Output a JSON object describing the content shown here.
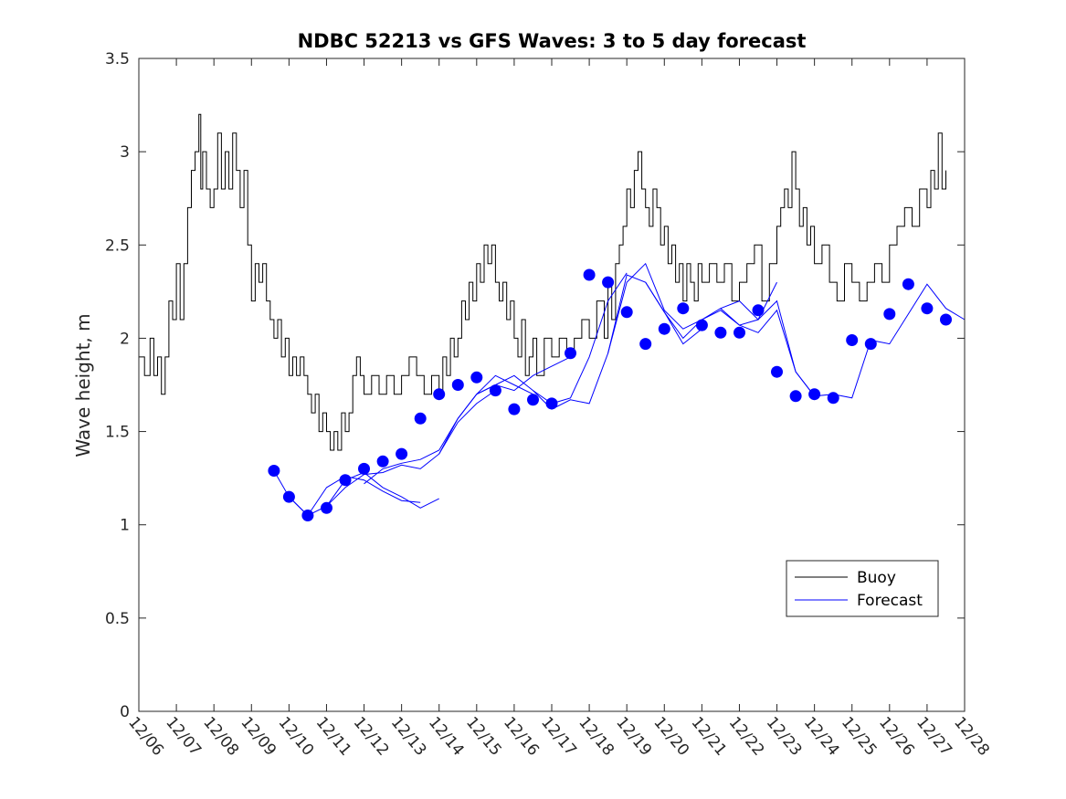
{
  "chart_data": {
    "type": "line",
    "title": "NDBC 52213 vs GFS Waves: 3 to 5 day forecast",
    "xlabel": "",
    "ylabel": "Wave height, m",
    "xlim": [
      0,
      22
    ],
    "ylim": [
      0,
      3.5
    ],
    "yticks": [
      0,
      0.5,
      1,
      1.5,
      2,
      2.5,
      3,
      3.5
    ],
    "ytick_labels": [
      "0",
      "0.5",
      "1",
      "1.5",
      "2",
      "2.5",
      "3",
      "3.5"
    ],
    "xtick_labels": [
      "12/06",
      "12/07",
      "12/08",
      "12/09",
      "12/10",
      "12/11",
      "12/12",
      "12/13",
      "12/14",
      "12/15",
      "12/16",
      "12/17",
      "12/18",
      "12/19",
      "12/20",
      "12/21",
      "12/22",
      "12/23",
      "12/24",
      "12/25",
      "12/26",
      "12/27",
      "12/28"
    ],
    "legend": {
      "position": "lower-right",
      "entries": [
        "Buoy",
        "Forecast"
      ]
    },
    "series": [
      {
        "name": "Buoy",
        "color": "#000000",
        "x": [
          0.0,
          0.15,
          0.3,
          0.4,
          0.5,
          0.6,
          0.7,
          0.8,
          0.9,
          1.0,
          1.1,
          1.2,
          1.3,
          1.4,
          1.5,
          1.6,
          1.65,
          1.7,
          1.8,
          1.9,
          2.0,
          2.1,
          2.2,
          2.3,
          2.4,
          2.5,
          2.6,
          2.7,
          2.8,
          2.9,
          3.0,
          3.1,
          3.2,
          3.3,
          3.4,
          3.5,
          3.6,
          3.7,
          3.8,
          3.9,
          4.0,
          4.1,
          4.2,
          4.3,
          4.4,
          4.5,
          4.6,
          4.7,
          4.8,
          4.9,
          5.0,
          5.1,
          5.2,
          5.3,
          5.4,
          5.5,
          5.6,
          5.7,
          5.8,
          5.9,
          6.0,
          6.2,
          6.4,
          6.6,
          6.8,
          7.0,
          7.2,
          7.4,
          7.6,
          7.8,
          8.0,
          8.1,
          8.2,
          8.3,
          8.4,
          8.5,
          8.6,
          8.7,
          8.8,
          8.9,
          9.0,
          9.1,
          9.2,
          9.3,
          9.4,
          9.5,
          9.6,
          9.7,
          9.8,
          9.9,
          10.0,
          10.1,
          10.2,
          10.3,
          10.4,
          10.5,
          10.6,
          10.8,
          11.0,
          11.2,
          11.4,
          11.6,
          11.8,
          12.0,
          12.2,
          12.4,
          12.5,
          12.6,
          12.7,
          12.8,
          12.9,
          13.0,
          13.1,
          13.2,
          13.3,
          13.4,
          13.5,
          13.6,
          13.7,
          13.8,
          13.9,
          14.0,
          14.1,
          14.2,
          14.3,
          14.4,
          14.5,
          14.6,
          14.7,
          14.8,
          14.9,
          15.0,
          15.2,
          15.4,
          15.6,
          15.8,
          16.0,
          16.2,
          16.4,
          16.6,
          16.8,
          17.0,
          17.1,
          17.2,
          17.3,
          17.4,
          17.5,
          17.6,
          17.7,
          17.8,
          17.9,
          18.0,
          18.2,
          18.4,
          18.6,
          18.8,
          19.0,
          19.2,
          19.4,
          19.6,
          19.8,
          20.0,
          20.2,
          20.4,
          20.6,
          20.8,
          21.0,
          21.1,
          21.2,
          21.3,
          21.4,
          21.5
        ],
        "values": [
          1.9,
          1.8,
          2.0,
          1.8,
          1.9,
          1.7,
          1.9,
          2.2,
          2.1,
          2.4,
          2.1,
          2.4,
          2.7,
          2.9,
          3.0,
          3.2,
          2.8,
          3.0,
          2.8,
          2.7,
          2.8,
          3.1,
          2.8,
          3.0,
          2.8,
          3.1,
          2.9,
          2.7,
          2.9,
          2.5,
          2.2,
          2.4,
          2.3,
          2.4,
          2.2,
          2.1,
          2.0,
          2.1,
          1.9,
          2.0,
          1.8,
          1.9,
          1.8,
          1.9,
          1.8,
          1.7,
          1.6,
          1.7,
          1.5,
          1.6,
          1.5,
          1.4,
          1.5,
          1.4,
          1.6,
          1.5,
          1.6,
          1.8,
          1.9,
          1.8,
          1.7,
          1.8,
          1.7,
          1.8,
          1.7,
          1.8,
          1.9,
          1.8,
          1.7,
          1.8,
          1.7,
          1.9,
          1.8,
          2.0,
          1.9,
          2.0,
          2.2,
          2.1,
          2.3,
          2.2,
          2.4,
          2.3,
          2.5,
          2.4,
          2.5,
          2.3,
          2.2,
          2.3,
          2.1,
          2.2,
          2.0,
          1.9,
          2.1,
          1.8,
          1.9,
          2.0,
          1.8,
          2.0,
          1.9,
          2.0,
          1.9,
          2.0,
          2.1,
          2.0,
          2.2,
          2.0,
          2.3,
          2.1,
          2.4,
          2.5,
          2.6,
          2.8,
          2.7,
          2.9,
          3.0,
          2.8,
          2.7,
          2.6,
          2.8,
          2.7,
          2.5,
          2.6,
          2.4,
          2.5,
          2.3,
          2.4,
          2.2,
          2.4,
          2.3,
          2.2,
          2.4,
          2.3,
          2.4,
          2.3,
          2.4,
          2.2,
          2.3,
          2.4,
          2.5,
          2.2,
          2.4,
          2.6,
          2.7,
          2.8,
          2.7,
          3.0,
          2.8,
          2.6,
          2.7,
          2.5,
          2.6,
          2.4,
          2.5,
          2.3,
          2.2,
          2.4,
          2.3,
          2.2,
          2.3,
          2.4,
          2.3,
          2.5,
          2.6,
          2.7,
          2.6,
          2.8,
          2.7,
          2.9,
          2.8,
          3.1,
          2.8,
          2.9
        ]
      },
      {
        "name": "Forecast",
        "color": "#0000ff",
        "runs": [
          {
            "x": [
              3.6,
              4.0,
              4.5,
              5.0,
              5.5,
              6.0,
              6.5,
              7.0,
              7.5
            ],
            "values": [
              1.29,
              1.15,
              1.05,
              1.2,
              1.26,
              1.24,
              1.18,
              1.13,
              1.12
            ]
          },
          {
            "x": [
              4.0,
              4.5,
              5.0,
              5.5,
              6.0,
              6.5,
              7.0,
              7.5,
              8.0
            ],
            "values": [
              1.15,
              1.05,
              1.1,
              1.24,
              1.28,
              1.2,
              1.15,
              1.09,
              1.14
            ]
          },
          {
            "x": [
              5.0,
              5.5,
              6.0,
              6.5,
              7.0,
              7.5,
              8.0,
              8.5,
              9.0,
              9.5
            ],
            "values": [
              1.1,
              1.2,
              1.27,
              1.28,
              1.32,
              1.3,
              1.38,
              1.55,
              1.65,
              1.72
            ]
          },
          {
            "x": [
              6.0,
              6.5,
              7.0,
              7.5,
              8.0,
              8.5,
              9.0,
              9.5,
              10.0,
              10.5
            ],
            "values": [
              1.22,
              1.3,
              1.33,
              1.35,
              1.4,
              1.57,
              1.7,
              1.8,
              1.75,
              1.7
            ]
          },
          {
            "x": [
              8.0,
              8.5,
              9.0,
              9.5,
              10.0,
              10.5,
              11.0,
              11.5
            ],
            "values": [
              1.38,
              1.57,
              1.7,
              1.75,
              1.72,
              1.8,
              1.85,
              1.9
            ]
          },
          {
            "x": [
              9.0,
              9.5,
              10.0,
              10.5,
              11.0,
              11.5,
              12.0,
              12.5,
              13.0
            ],
            "values": [
              1.7,
              1.75,
              1.8,
              1.72,
              1.65,
              1.68,
              1.9,
              2.2,
              2.35
            ]
          },
          {
            "x": [
              10.5,
              11.0,
              11.5,
              12.0,
              12.5,
              13.0,
              13.5,
              14.0,
              14.5,
              15.0
            ],
            "values": [
              1.72,
              1.62,
              1.67,
              1.65,
              1.92,
              2.34,
              2.3,
              2.14,
              1.97,
              2.05
            ]
          },
          {
            "x": [
              12.5,
              13.0,
              13.5,
              14.0,
              14.5,
              15.0,
              15.5,
              16.0,
              16.5,
              17.0
            ],
            "values": [
              1.92,
              2.3,
              2.4,
              2.15,
              2.05,
              2.1,
              2.16,
              2.2,
              2.1,
              2.3
            ]
          },
          {
            "x": [
              13.5,
              14.0,
              14.5,
              15.0,
              15.5,
              16.0,
              16.5,
              17.0,
              17.5,
              18.0
            ],
            "values": [
              2.3,
              2.14,
              2.0,
              2.1,
              2.15,
              2.07,
              2.1,
              2.2,
              1.82,
              1.69
            ]
          },
          {
            "x": [
              15.5,
              16.0,
              16.5,
              17.0,
              17.5,
              18.0,
              18.5,
              19.0,
              19.5,
              20.0,
              20.5,
              21.0,
              21.5,
              22.0
            ],
            "values": [
              2.16,
              2.07,
              2.03,
              2.15,
              1.82,
              1.69,
              1.7,
              1.68,
              1.99,
              1.97,
              2.13,
              2.29,
              2.16,
              2.1
            ]
          }
        ],
        "points": {
          "x": [
            3.6,
            4.0,
            4.5,
            5.0,
            5.5,
            6.0,
            6.5,
            7.0,
            7.5,
            8.0,
            8.5,
            9.0,
            9.5,
            10.0,
            10.5,
            11.0,
            11.5,
            12.0,
            12.5,
            13.0,
            13.5,
            14.0,
            14.5,
            15.0,
            15.5,
            16.0,
            16.5,
            17.0,
            17.5,
            18.0,
            18.5,
            19.0,
            19.5,
            20.0,
            20.5,
            21.0,
            21.5
          ],
          "values": [
            1.29,
            1.15,
            1.05,
            1.09,
            1.24,
            1.3,
            1.34,
            1.38,
            1.57,
            1.7,
            1.75,
            1.79,
            1.72,
            1.62,
            1.67,
            1.65,
            1.92,
            2.34,
            2.3,
            2.14,
            1.97,
            2.05,
            2.16,
            2.07,
            2.03,
            2.03,
            2.15,
            1.82,
            1.69,
            1.7,
            1.68,
            1.99,
            1.97,
            2.13,
            2.29,
            2.16,
            2.1
          ]
        }
      }
    ]
  }
}
